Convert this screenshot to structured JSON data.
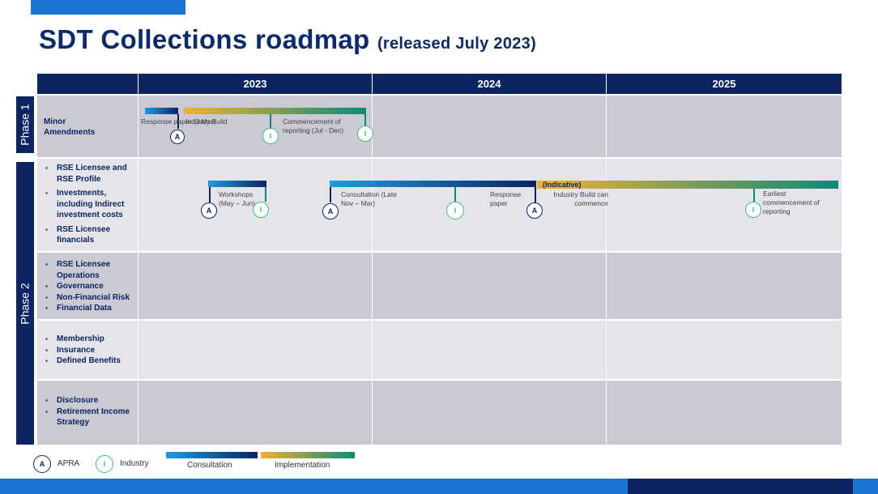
{
  "title": {
    "main": "SDT Collections roadmap",
    "sub": "(released July 2023)"
  },
  "years": [
    "2023",
    "2024",
    "2025"
  ],
  "phases": [
    "Phase 1",
    "Phase 2"
  ],
  "rows": [
    {
      "label": [
        "Minor",
        "Amendments"
      ]
    },
    {
      "items": [
        "RSE Licensee  and RSE Profile",
        "Investments, including Indirect investment costs",
        "RSE Licensee financials"
      ]
    },
    {
      "items": [
        "RSE Licensee Operations",
        "Governance",
        "Non-Financial  Risk",
        "Financial  Data"
      ]
    },
    {
      "items": [
        "Membership",
        "Insurance",
        "Defined Benefits"
      ]
    },
    {
      "items": [
        "Disclosure",
        "Retirement Income Strategy"
      ]
    }
  ],
  "milestones": {
    "response_paper_1": "Response paper (3 Mar)",
    "industry_build_1": "Industry Build",
    "commencement": "Commencement of reporting (Jul - Dec)",
    "workshops": "Workshops (May – Jun)",
    "consultation": "Consultation (Late Nov – Mar)",
    "response_paper_2": "Response paper",
    "indicative": "(Indicative)",
    "industry_build_2": "Industry Build can commence",
    "earliest": "Earliest commencement of reporting"
  },
  "markers": {
    "apra": "A",
    "industry": "I"
  },
  "legend": {
    "apra": "APRA",
    "industry": "Industry",
    "consultation": "Consultation",
    "implementation": "Implementation"
  },
  "colors": {
    "navy": "#0c2461",
    "blue": "#1a9ee0",
    "gold": "#f2b134",
    "teal": "#0e8a78",
    "industry_green": "#3bbf7a",
    "row_dark": "#c9cad3",
    "row_light": "#e4e4ea"
  }
}
